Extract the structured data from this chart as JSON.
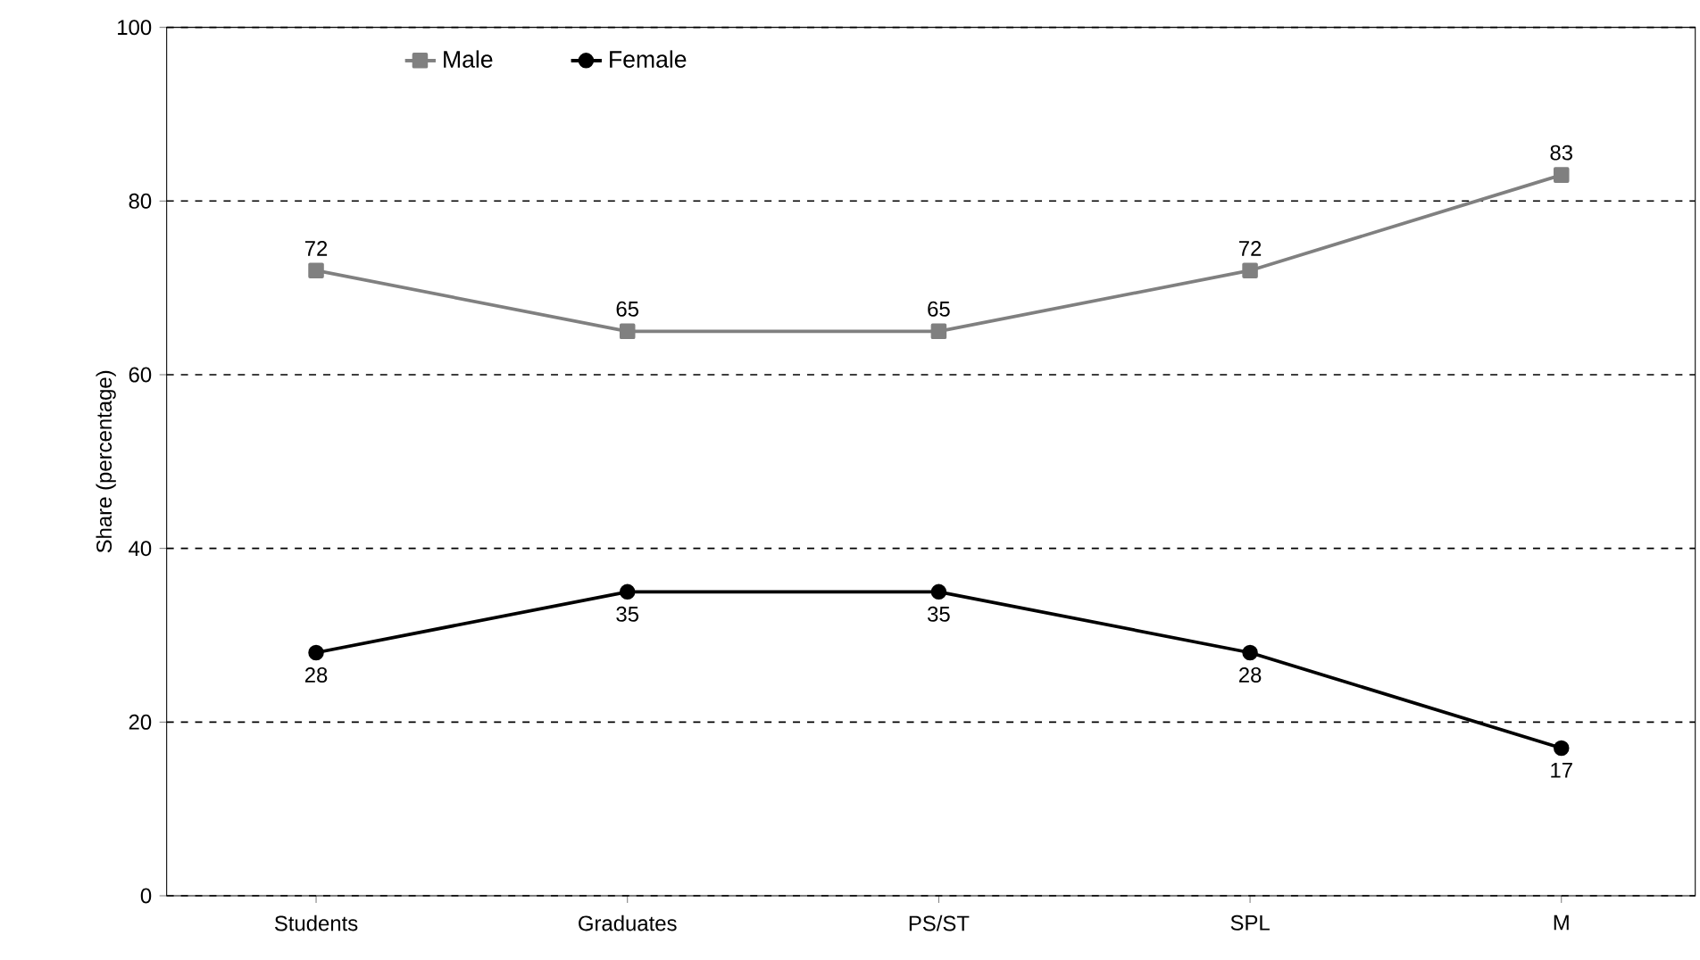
{
  "chart_data": {
    "type": "line",
    "ylabel": "Share (percentage)",
    "categories": [
      "Students",
      "Graduates",
      "PS/ST",
      "SPL",
      "M"
    ],
    "series": [
      {
        "name": "Male",
        "color": "#808080",
        "marker": "square",
        "values": [
          72,
          65,
          65,
          72,
          83
        ]
      },
      {
        "name": "Female",
        "color": "#000000",
        "marker": "circle",
        "values": [
          28,
          35,
          35,
          28,
          17
        ]
      }
    ],
    "ylim": [
      0,
      100
    ],
    "yticks": [
      0,
      20,
      40,
      60,
      80,
      100
    ],
    "grid": "y",
    "legend": "top left",
    "data_labels": true,
    "line_style": "solid"
  }
}
